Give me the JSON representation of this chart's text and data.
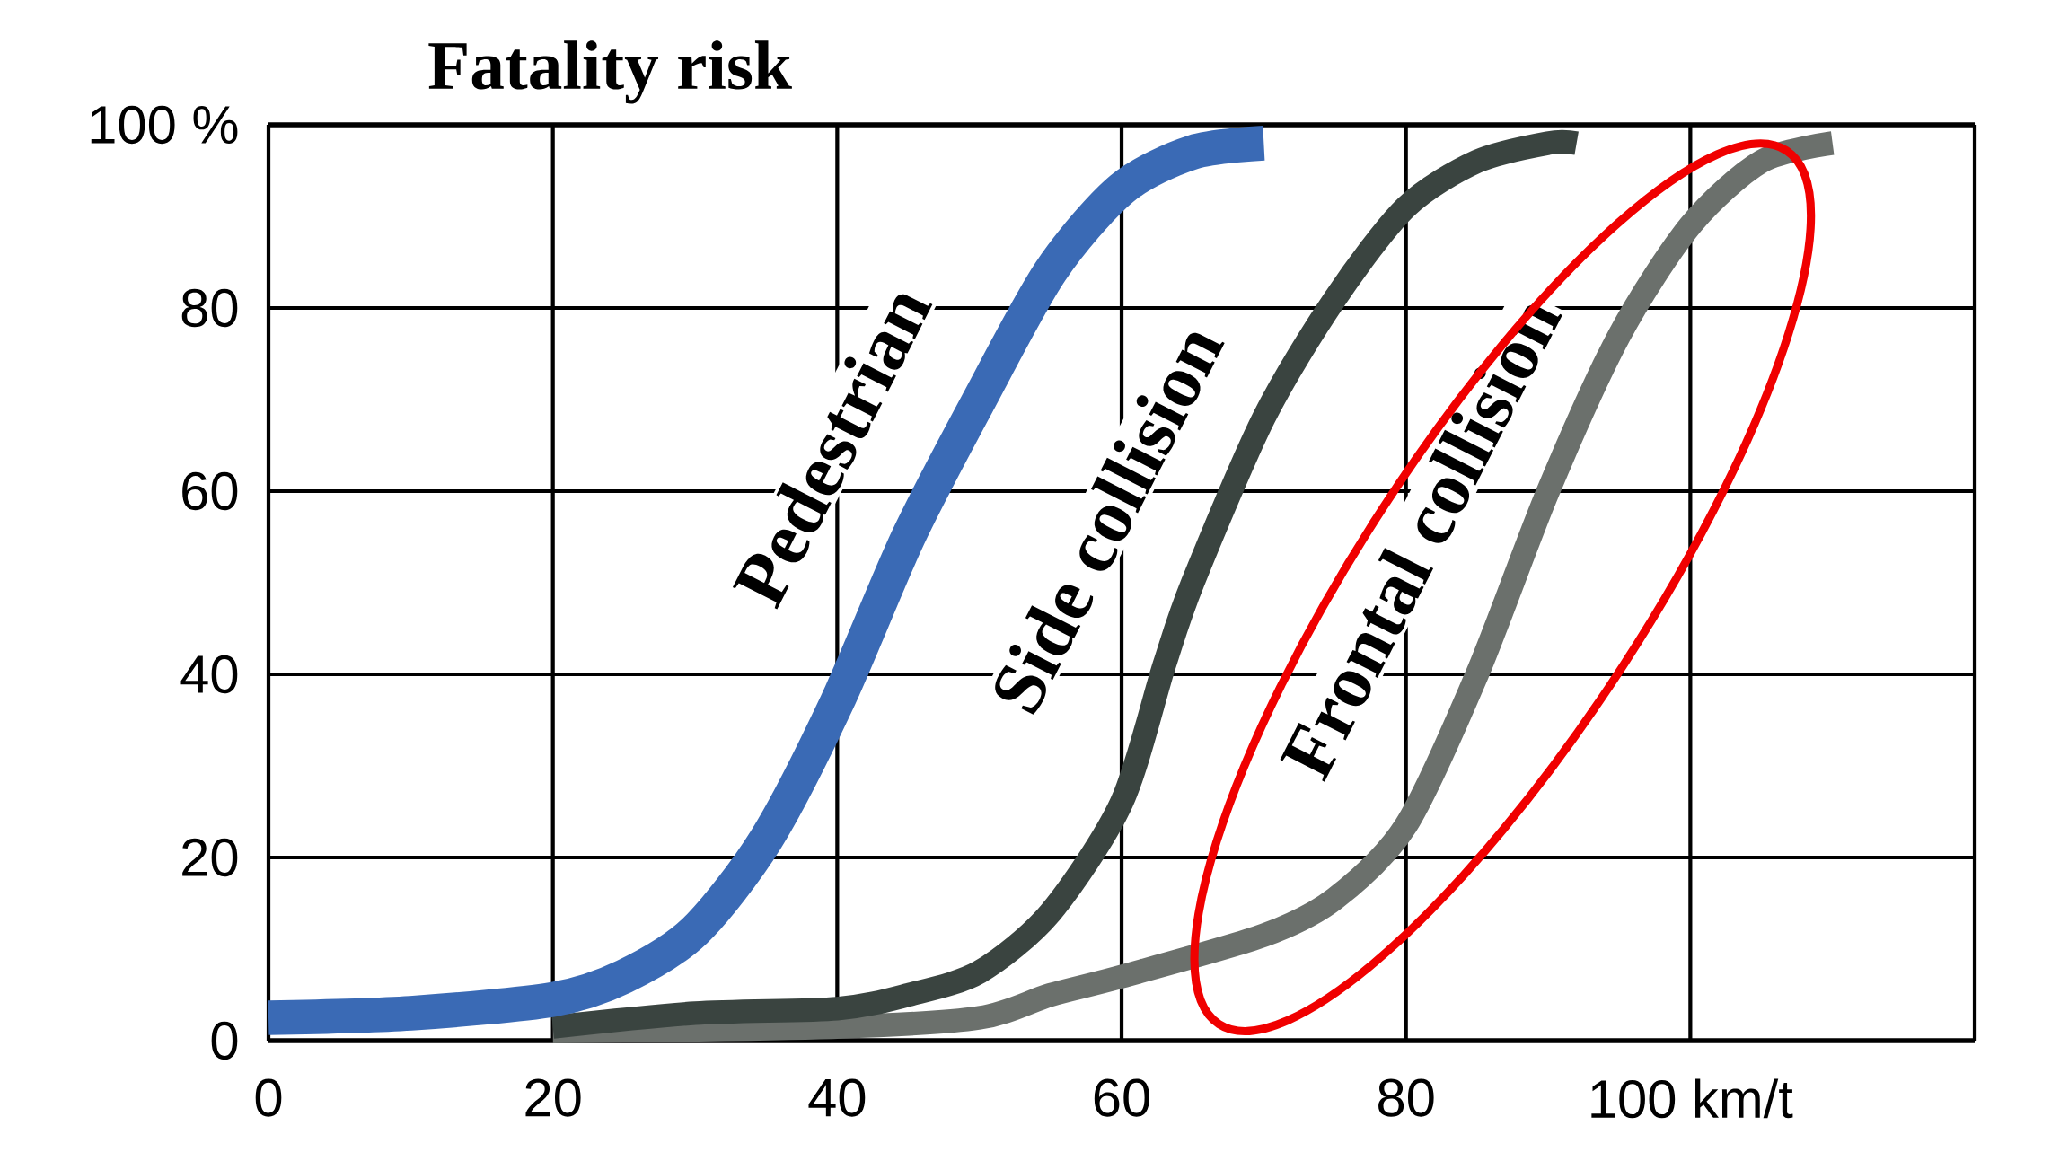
{
  "chart_data": {
    "type": "line",
    "title": "Fatality risk",
    "xlim": [
      0,
      120
    ],
    "ylim": [
      0,
      100
    ],
    "xticks": [
      0,
      20,
      40,
      60,
      80,
      {
        "value": 100,
        "label": "100 km/t"
      },
      {
        "value": 120,
        "label": null
      }
    ],
    "yticks": [
      0,
      20,
      40,
      60,
      80,
      {
        "value": 100,
        "label": "100 %"
      }
    ],
    "grid": true,
    "line_style": "solid",
    "series": [
      {
        "name": "Pedestrian",
        "color": "#3a6ab5",
        "x": [
          0,
          10,
          20,
          25,
          30,
          35,
          40,
          45,
          50,
          55,
          60,
          65,
          70
        ],
        "values": [
          2.5,
          3,
          4.5,
          7,
          12,
          22,
          37,
          55,
          70,
          84,
          93,
          97,
          98
        ]
      },
      {
        "name": "Side collision",
        "color": "#3a4440",
        "x": [
          20,
          30,
          40,
          45,
          50,
          55,
          60,
          63,
          65,
          70,
          75,
          80,
          85,
          90,
          92
        ],
        "values": [
          1.5,
          3,
          3.5,
          5,
          7.5,
          14,
          26,
          41,
          50,
          68,
          81,
          91,
          96,
          98,
          98
        ]
      },
      {
        "name": "Frontal collision",
        "color": "#6b706c",
        "x": [
          20,
          40,
          50,
          55,
          60,
          70,
          75,
          80,
          85,
          90,
          95,
          100,
          105,
          110
        ],
        "values": [
          1,
          1.5,
          2.5,
          5,
          7,
          11.5,
          15.5,
          23.5,
          40,
          60,
          77,
          89,
          96,
          98
        ]
      }
    ]
  }
}
